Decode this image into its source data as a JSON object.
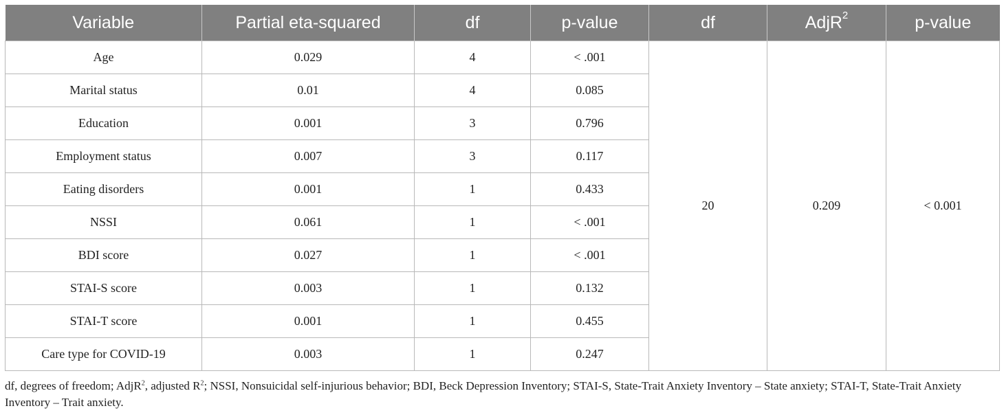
{
  "table": {
    "headers": [
      "Variable",
      "Partial eta-squared",
      "df",
      "p-value",
      "df",
      "AdjR",
      "p-value"
    ],
    "header_adjr_superscript": "2",
    "rows": [
      {
        "variable": "Age",
        "eta": "0.029",
        "df": "4",
        "p": "< .001"
      },
      {
        "variable": "Marital status",
        "eta": "0.01",
        "df": "4",
        "p": "0.085"
      },
      {
        "variable": "Education",
        "eta": "0.001",
        "df": "3",
        "p": "0.796"
      },
      {
        "variable": "Employment status",
        "eta": "0.007",
        "df": "3",
        "p": "0.117"
      },
      {
        "variable": "Eating disorders",
        "eta": "0.001",
        "df": "1",
        "p": "0.433"
      },
      {
        "variable": "NSSI",
        "eta": "0.061",
        "df": "1",
        "p": "< .001"
      },
      {
        "variable": "BDI score",
        "eta": "0.027",
        "df": "1",
        "p": "< .001"
      },
      {
        "variable": "STAI-S score",
        "eta": "0.003",
        "df": "1",
        "p": "0.132"
      },
      {
        "variable": "STAI-T score",
        "eta": "0.001",
        "df": "1",
        "p": "0.455"
      },
      {
        "variable": "Care type for COVID-19",
        "eta": "0.003",
        "df": "1",
        "p": "0.247"
      }
    ],
    "model": {
      "df": "20",
      "adjr2": "0.209",
      "p": "< 0.001"
    }
  },
  "footnote": {
    "part1": "df, degrees of freedom; AdjR",
    "sup1": "2",
    "part2": ", adjusted R",
    "sup2": "2",
    "part3": "; NSSI, Nonsuicidal self-injurious behavior; BDI, Beck Depression Inventory; STAI-S, State-Trait Anxiety Inventory – State anxiety; STAI-T, State-Trait Anxiety Inventory – Trait anxiety."
  }
}
